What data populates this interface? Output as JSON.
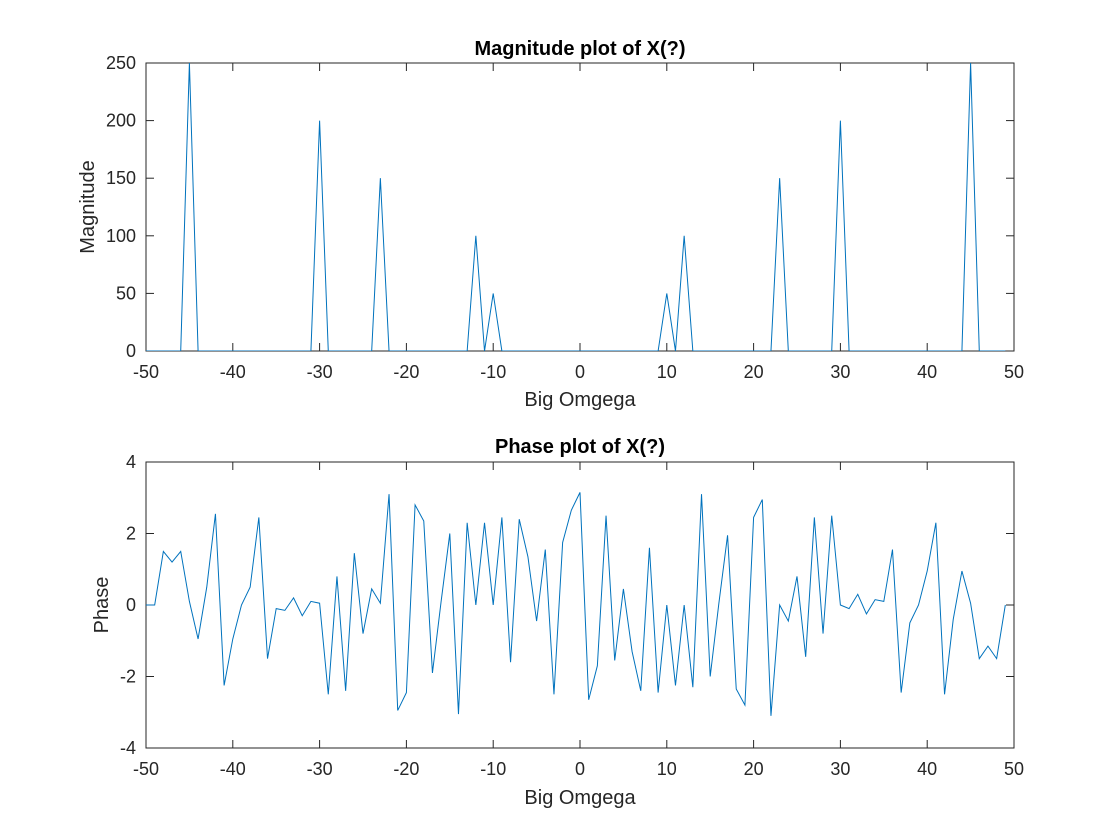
{
  "chart_data": [
    {
      "type": "line",
      "title": "Magnitude plot of X(?)",
      "xlabel": "Big Omgega",
      "ylabel": "Magnitude",
      "xlim": [
        -50,
        50
      ],
      "ylim": [
        0,
        250
      ],
      "xticks": [
        -50,
        -40,
        -30,
        -20,
        -10,
        0,
        10,
        20,
        30,
        40,
        50
      ],
      "yticks": [
        0,
        50,
        100,
        150,
        200,
        250
      ],
      "grid": false,
      "color": "#0072BD",
      "x": [
        -50,
        -49,
        -48,
        -47,
        -46,
        -45,
        -44,
        -43,
        -42,
        -41,
        -40,
        -39,
        -38,
        -37,
        -36,
        -35,
        -34,
        -33,
        -32,
        -31,
        -30,
        -29,
        -28,
        -27,
        -26,
        -25,
        -24,
        -23,
        -22,
        -21,
        -20,
        -19,
        -18,
        -17,
        -16,
        -15,
        -14,
        -13,
        -12,
        -11,
        -10,
        -9,
        -8,
        -7,
        -6,
        -5,
        -4,
        -3,
        -2,
        -1,
        0,
        1,
        2,
        3,
        4,
        5,
        6,
        7,
        8,
        9,
        10,
        11,
        12,
        13,
        14,
        15,
        16,
        17,
        18,
        19,
        20,
        21,
        22,
        23,
        24,
        25,
        26,
        27,
        28,
        29,
        30,
        31,
        32,
        33,
        34,
        35,
        36,
        37,
        38,
        39,
        40,
        41,
        42,
        43,
        44,
        45,
        46,
        47,
        48,
        49
      ],
      "y": [
        0,
        0,
        0,
        0,
        0,
        250,
        0,
        0,
        0,
        0,
        0,
        0,
        0,
        0,
        0,
        0,
        0,
        0,
        0,
        0,
        200,
        0,
        0,
        0,
        0,
        0,
        0,
        150,
        0,
        0,
        0,
        0,
        0,
        0,
        0,
        0,
        0,
        0,
        100,
        0,
        50,
        0,
        0,
        0,
        0,
        0,
        0,
        0,
        0,
        0,
        0,
        0,
        0,
        0,
        0,
        0,
        0,
        0,
        0,
        0,
        50,
        0,
        100,
        0,
        0,
        0,
        0,
        0,
        0,
        0,
        0,
        0,
        0,
        150,
        0,
        0,
        0,
        0,
        0,
        0,
        200,
        0,
        0,
        0,
        0,
        0,
        0,
        0,
        0,
        0,
        0,
        0,
        0,
        0,
        0,
        250,
        0,
        0,
        0,
        0
      ]
    },
    {
      "type": "line",
      "title": "Phase plot of X(?)",
      "xlabel": "Big Omgega",
      "ylabel": "Phase",
      "xlim": [
        -50,
        50
      ],
      "ylim": [
        -4,
        4
      ],
      "xticks": [
        -50,
        -40,
        -30,
        -20,
        -10,
        0,
        10,
        20,
        30,
        40,
        50
      ],
      "yticks": [
        -4,
        -2,
        0,
        2,
        4
      ],
      "grid": false,
      "color": "#0072BD",
      "x": [
        -50,
        -49,
        -48,
        -47,
        -46,
        -45,
        -44,
        -43,
        -42,
        -41,
        -40,
        -39,
        -38,
        -37,
        -36,
        -35,
        -34,
        -33,
        -32,
        -31,
        -30,
        -29,
        -28,
        -27,
        -26,
        -25,
        -24,
        -23,
        -22,
        -21,
        -20,
        -19,
        -18,
        -17,
        -16,
        -15,
        -14,
        -13,
        -12,
        -11,
        -10,
        -9,
        -8,
        -7,
        -6,
        -5,
        -4,
        -3,
        -2,
        -1,
        0,
        1,
        2,
        3,
        4,
        5,
        6,
        7,
        8,
        9,
        10,
        11,
        12,
        13,
        14,
        15,
        16,
        17,
        18,
        19,
        20,
        21,
        22,
        23,
        24,
        25,
        26,
        27,
        28,
        29,
        30,
        31,
        32,
        33,
        34,
        35,
        36,
        37,
        38,
        39,
        40,
        41,
        42,
        43,
        44,
        45,
        46,
        47,
        48,
        49
      ],
      "y": [
        0,
        0,
        1.5,
        1.2,
        1.5,
        0.1,
        -0.95,
        0.5,
        2.55,
        -2.25,
        -0.95,
        0.0,
        0.5,
        2.45,
        -1.5,
        -0.1,
        -0.15,
        0.2,
        -0.3,
        0.1,
        0.05,
        -2.5,
        0.8,
        -2.4,
        1.45,
        -0.8,
        0.45,
        0.05,
        3.1,
        -2.95,
        -2.45,
        2.8,
        2.35,
        -1.9,
        0.1,
        2.0,
        -3.05,
        2.3,
        0.0,
        2.3,
        0.0,
        2.45,
        -1.6,
        2.4,
        1.35,
        -0.45,
        1.55,
        -2.5,
        1.75,
        2.65,
        3.15,
        -2.65,
        -1.7,
        2.5,
        -1.55,
        0.45,
        -1.3,
        -2.4,
        1.6,
        -2.45,
        0.0,
        -2.25,
        0.0,
        -2.3,
        3.1,
        -2.0,
        0.05,
        1.95,
        -2.35,
        -2.8,
        2.45,
        2.95,
        -3.1,
        0.0,
        -0.45,
        0.8,
        -1.45,
        2.45,
        -0.8,
        2.5,
        0.0,
        -0.1,
        0.3,
        -0.25,
        0.15,
        0.1,
        1.55,
        -2.45,
        -0.5,
        0.0,
        0.95,
        2.3,
        -2.5,
        -0.4,
        0.95,
        0.05,
        -1.5,
        -1.15,
        -1.5,
        0.0
      ]
    }
  ]
}
